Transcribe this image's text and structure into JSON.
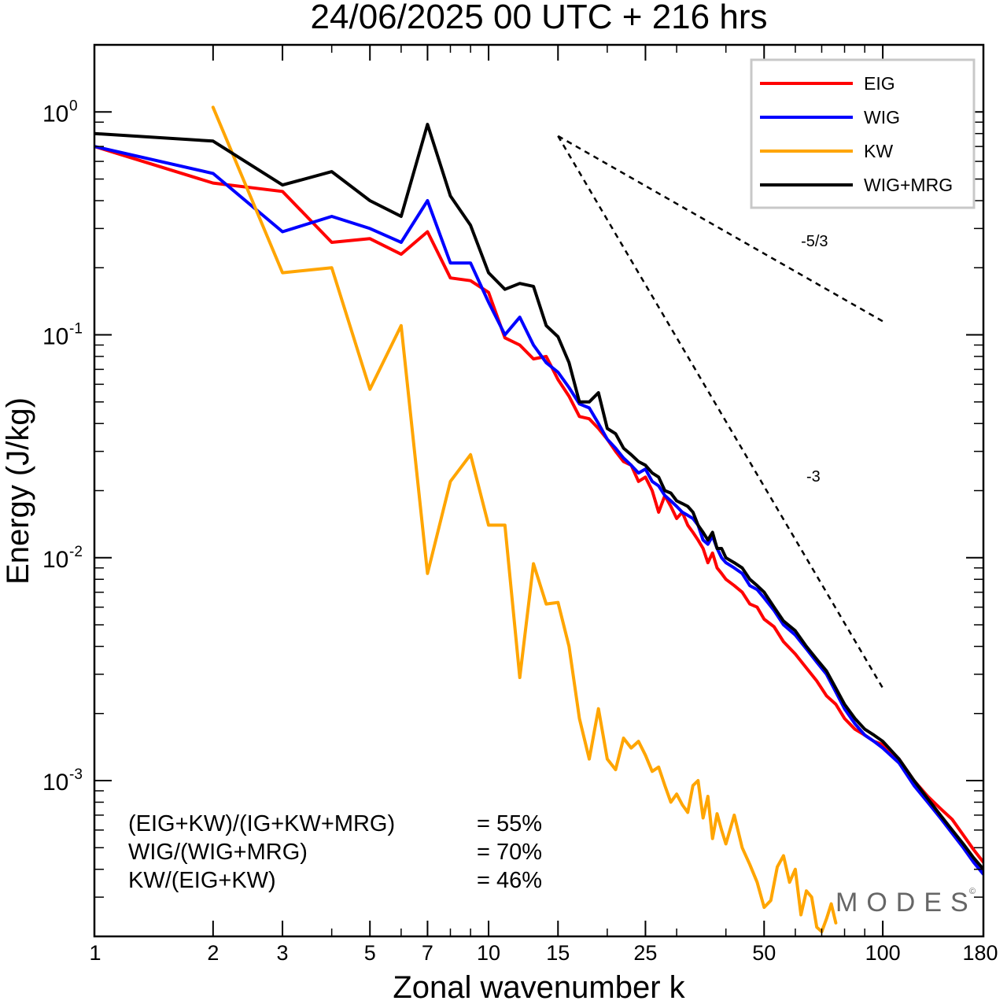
{
  "chart_data": {
    "type": "line",
    "title": "24/06/2025  00 UTC  + 216 hrs",
    "xlabel": "Zonal wavenumber k",
    "ylabel": "Energy (J/kg)",
    "x_scale": "log",
    "y_scale": "log",
    "xlim": [
      1,
      180
    ],
    "ylim": [
      0.0002,
      2
    ],
    "x_ticks": [
      1,
      2,
      3,
      5,
      7,
      10,
      15,
      25,
      50,
      100,
      180
    ],
    "x_tick_labels": [
      "1",
      "2",
      "3",
      "5",
      "7",
      "10",
      "15",
      "25",
      "50",
      "100",
      "180"
    ],
    "y_ticks": [
      {
        "value": 1,
        "base": "10",
        "exp": "0"
      },
      {
        "value": 0.1,
        "base": "10",
        "exp": "-1"
      },
      {
        "value": 0.01,
        "base": "10",
        "exp": "-2"
      },
      {
        "value": 0.001,
        "base": "10",
        "exp": "-3"
      }
    ],
    "grid": false,
    "legend_position": "top-right",
    "series": [
      {
        "name": "EIG",
        "color": "#ff0000",
        "points": [
          [
            1,
            0.7
          ],
          [
            2,
            0.48
          ],
          [
            3,
            0.44
          ],
          [
            4,
            0.26
          ],
          [
            5,
            0.27
          ],
          [
            6,
            0.23
          ],
          [
            7,
            0.29
          ],
          [
            8,
            0.18
          ],
          [
            9,
            0.175
          ],
          [
            10,
            0.155
          ],
          [
            11,
            0.097
          ],
          [
            12,
            0.09
          ],
          [
            13,
            0.078
          ],
          [
            14,
            0.08
          ],
          [
            15,
            0.063
          ],
          [
            16,
            0.053
          ],
          [
            17,
            0.043
          ],
          [
            18,
            0.042
          ],
          [
            19,
            0.038
          ],
          [
            20,
            0.034
          ],
          [
            21,
            0.03
          ],
          [
            22,
            0.027
          ],
          [
            23,
            0.026
          ],
          [
            24,
            0.022
          ],
          [
            25,
            0.023
          ],
          [
            26,
            0.02
          ],
          [
            27,
            0.016
          ],
          [
            28,
            0.019
          ],
          [
            29,
            0.017
          ],
          [
            30,
            0.015
          ],
          [
            31,
            0.016
          ],
          [
            32,
            0.014
          ],
          [
            33,
            0.013
          ],
          [
            34,
            0.012
          ],
          [
            35,
            0.011
          ],
          [
            36,
            0.0095
          ],
          [
            37,
            0.0105
          ],
          [
            38,
            0.009
          ],
          [
            39,
            0.0085
          ],
          [
            40,
            0.008
          ],
          [
            42,
            0.0075
          ],
          [
            44,
            0.007
          ],
          [
            46,
            0.0062
          ],
          [
            48,
            0.006
          ],
          [
            50,
            0.0053
          ],
          [
            53,
            0.0049
          ],
          [
            56,
            0.0042
          ],
          [
            60,
            0.0037
          ],
          [
            64,
            0.0032
          ],
          [
            68,
            0.0028
          ],
          [
            72,
            0.0024
          ],
          [
            76,
            0.0022
          ],
          [
            80,
            0.0019
          ],
          [
            85,
            0.0017
          ],
          [
            90,
            0.0016
          ],
          [
            95,
            0.0015
          ],
          [
            100,
            0.00145
          ],
          [
            110,
            0.00125
          ],
          [
            120,
            0.001
          ],
          [
            130,
            0.00085
          ],
          [
            140,
            0.00075
          ],
          [
            150,
            0.00067
          ],
          [
            160,
            0.00057
          ],
          [
            170,
            0.00049
          ],
          [
            180,
            0.00043
          ]
        ]
      },
      {
        "name": "WIG",
        "color": "#0000ff",
        "points": [
          [
            1,
            0.7
          ],
          [
            2,
            0.53
          ],
          [
            3,
            0.29
          ],
          [
            4,
            0.34
          ],
          [
            5,
            0.3
          ],
          [
            6,
            0.26
          ],
          [
            7,
            0.4
          ],
          [
            8,
            0.21
          ],
          [
            9,
            0.21
          ],
          [
            10,
            0.14
          ],
          [
            11,
            0.1
          ],
          [
            12,
            0.12
          ],
          [
            13,
            0.09
          ],
          [
            14,
            0.075
          ],
          [
            15,
            0.068
          ],
          [
            16,
            0.058
          ],
          [
            17,
            0.049
          ],
          [
            18,
            0.047
          ],
          [
            19,
            0.04
          ],
          [
            20,
            0.034
          ],
          [
            21,
            0.031
          ],
          [
            22,
            0.028
          ],
          [
            23,
            0.026
          ],
          [
            24,
            0.024
          ],
          [
            25,
            0.025
          ],
          [
            26,
            0.022
          ],
          [
            27,
            0.021
          ],
          [
            28,
            0.019
          ],
          [
            29,
            0.018
          ],
          [
            30,
            0.017
          ],
          [
            31,
            0.016
          ],
          [
            32,
            0.0155
          ],
          [
            33,
            0.015
          ],
          [
            34,
            0.014
          ],
          [
            35,
            0.012
          ],
          [
            36,
            0.0115
          ],
          [
            37,
            0.0125
          ],
          [
            38,
            0.011
          ],
          [
            39,
            0.01
          ],
          [
            40,
            0.0095
          ],
          [
            42,
            0.009
          ],
          [
            44,
            0.0085
          ],
          [
            46,
            0.0075
          ],
          [
            48,
            0.0072
          ],
          [
            50,
            0.0066
          ],
          [
            53,
            0.0058
          ],
          [
            56,
            0.005
          ],
          [
            60,
            0.0045
          ],
          [
            64,
            0.0039
          ],
          [
            68,
            0.0034
          ],
          [
            72,
            0.003
          ],
          [
            76,
            0.0025
          ],
          [
            80,
            0.0021
          ],
          [
            85,
            0.0018
          ],
          [
            90,
            0.0016
          ],
          [
            95,
            0.0015
          ],
          [
            100,
            0.0014
          ],
          [
            110,
            0.0012
          ],
          [
            120,
            0.00095
          ],
          [
            130,
            0.0008
          ],
          [
            140,
            0.00068
          ],
          [
            150,
            0.00058
          ],
          [
            160,
            0.0005
          ],
          [
            170,
            0.00043
          ],
          [
            180,
            0.00038
          ]
        ]
      },
      {
        "name": "KW",
        "color": "#ffa500",
        "points": [
          [
            2,
            1.05
          ],
          [
            3,
            0.19
          ],
          [
            4,
            0.2
          ],
          [
            5,
            0.057
          ],
          [
            6,
            0.11
          ],
          [
            7,
            0.0085
          ],
          [
            8,
            0.022
          ],
          [
            9,
            0.029
          ],
          [
            10,
            0.014
          ],
          [
            11,
            0.014
          ],
          [
            12,
            0.0029
          ],
          [
            13,
            0.0094
          ],
          [
            14,
            0.0062
          ],
          [
            15,
            0.0063
          ],
          [
            16,
            0.004
          ],
          [
            17,
            0.0019
          ],
          [
            18,
            0.00125
          ],
          [
            19,
            0.0021
          ],
          [
            20,
            0.00125
          ],
          [
            21,
            0.00112
          ],
          [
            22,
            0.00155
          ],
          [
            23,
            0.0014
          ],
          [
            24,
            0.0015
          ],
          [
            25,
            0.0013
          ],
          [
            26,
            0.0011
          ],
          [
            27,
            0.00115
          ],
          [
            28,
            0.00095
          ],
          [
            29,
            0.0008
          ],
          [
            30,
            0.00087
          ],
          [
            31,
            0.00078
          ],
          [
            32,
            0.00072
          ],
          [
            33,
            0.00095
          ],
          [
            34,
            0.001
          ],
          [
            35,
            0.00068
          ],
          [
            36,
            0.00085
          ],
          [
            37,
            0.00055
          ],
          [
            38,
            0.00071
          ],
          [
            39,
            0.0006
          ],
          [
            40,
            0.00052
          ],
          [
            42,
            0.0007
          ],
          [
            44,
            0.0005
          ],
          [
            46,
            0.00042
          ],
          [
            48,
            0.00035
          ],
          [
            50,
            0.00027
          ],
          [
            52,
            0.00029
          ],
          [
            54,
            0.00041
          ],
          [
            56,
            0.00046
          ],
          [
            58,
            0.00035
          ],
          [
            60,
            0.0004
          ],
          [
            62,
            0.00025
          ],
          [
            64,
            0.00032
          ],
          [
            66,
            0.0003
          ],
          [
            68,
            0.00022
          ],
          [
            70,
            0.00021
          ],
          [
            72,
            0.00024
          ],
          [
            74,
            0.00028
          ],
          [
            76,
            0.00023
          ]
        ]
      },
      {
        "name": "WIG+MRG",
        "color": "#000000",
        "points": [
          [
            1,
            0.8
          ],
          [
            2,
            0.74
          ],
          [
            3,
            0.47
          ],
          [
            4,
            0.54
          ],
          [
            5,
            0.4
          ],
          [
            6,
            0.34
          ],
          [
            7,
            0.88
          ],
          [
            8,
            0.42
          ],
          [
            9,
            0.31
          ],
          [
            10,
            0.19
          ],
          [
            11,
            0.16
          ],
          [
            12,
            0.17
          ],
          [
            13,
            0.165
          ],
          [
            14,
            0.11
          ],
          [
            15,
            0.098
          ],
          [
            16,
            0.075
          ],
          [
            17,
            0.05
          ],
          [
            18,
            0.05
          ],
          [
            19,
            0.055
          ],
          [
            20,
            0.038
          ],
          [
            21,
            0.036
          ],
          [
            22,
            0.031
          ],
          [
            23,
            0.029
          ],
          [
            24,
            0.027
          ],
          [
            25,
            0.026
          ],
          [
            26,
            0.024
          ],
          [
            27,
            0.023
          ],
          [
            28,
            0.02
          ],
          [
            29,
            0.0195
          ],
          [
            30,
            0.018
          ],
          [
            31,
            0.0175
          ],
          [
            32,
            0.017
          ],
          [
            33,
            0.016
          ],
          [
            34,
            0.014
          ],
          [
            35,
            0.013
          ],
          [
            36,
            0.012
          ],
          [
            37,
            0.013
          ],
          [
            38,
            0.011
          ],
          [
            39,
            0.011
          ],
          [
            40,
            0.01
          ],
          [
            42,
            0.0095
          ],
          [
            44,
            0.009
          ],
          [
            46,
            0.008
          ],
          [
            48,
            0.0075
          ],
          [
            50,
            0.007
          ],
          [
            53,
            0.006
          ],
          [
            56,
            0.0052
          ],
          [
            60,
            0.0047
          ],
          [
            64,
            0.004
          ],
          [
            68,
            0.0035
          ],
          [
            72,
            0.0031
          ],
          [
            76,
            0.0026
          ],
          [
            80,
            0.0022
          ],
          [
            85,
            0.0019
          ],
          [
            90,
            0.0017
          ],
          [
            95,
            0.0016
          ],
          [
            100,
            0.0015
          ],
          [
            110,
            0.00125
          ],
          [
            120,
            0.001
          ],
          [
            130,
            0.00083
          ],
          [
            140,
            0.0007
          ],
          [
            150,
            0.0006
          ],
          [
            160,
            0.00052
          ],
          [
            170,
            0.00045
          ],
          [
            180,
            0.0004
          ]
        ]
      }
    ],
    "reference_lines": [
      {
        "label": "-5/3",
        "from": [
          15,
          0.78
        ],
        "to": [
          100,
          0.115
        ],
        "dash": true
      },
      {
        "label": "-3",
        "from": [
          15,
          0.78
        ],
        "to": [
          100,
          0.0026
        ],
        "dash": true
      }
    ],
    "annotations": [
      {
        "label": "(EIG+KW)/(IG+KW+MRG)",
        "value": "= 55%"
      },
      {
        "label": "WIG/(WIG+MRG)",
        "value": "= 70%"
      },
      {
        "label": "KW/(EIG+KW)",
        "value": "= 46%"
      }
    ],
    "brand": {
      "text": "MODES",
      "mark": "©"
    }
  }
}
